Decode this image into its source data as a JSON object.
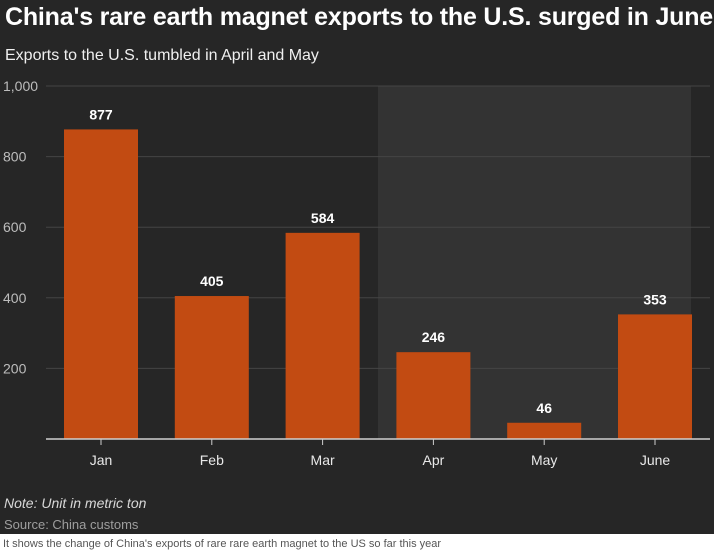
{
  "header": {
    "title": "China's rare earth magnet exports to the U.S. surged in June",
    "subtitle": "Exports to the U.S. tumbled in April and May"
  },
  "footer": {
    "note": "Note: Unit in metric ton",
    "source": "Source: China customs"
  },
  "caption": "It shows the change of China's exports of rare rare earth magnet to the US so far this year",
  "colors": {
    "background": "#262626",
    "highlight_band": "#333333",
    "bar": "#c24b12",
    "grid": "#444444",
    "axis": "#cfcfcf",
    "text": "#ffffff"
  },
  "chart_data": {
    "type": "bar",
    "categories": [
      "Jan",
      "Feb",
      "Mar",
      "Apr",
      "May",
      "June"
    ],
    "values": [
      877,
      405,
      584,
      246,
      46,
      353
    ],
    "data_labels": [
      "877",
      "405",
      "584",
      "246",
      "46",
      "353"
    ],
    "y_ticks": [
      200,
      400,
      600,
      800,
      1000
    ],
    "y_tick_labels": [
      "200",
      "400",
      "600",
      "800",
      "1,000"
    ],
    "ylim": [
      0,
      1000
    ],
    "grid": true,
    "highlight_categories": [
      "Apr",
      "May",
      "June"
    ]
  }
}
